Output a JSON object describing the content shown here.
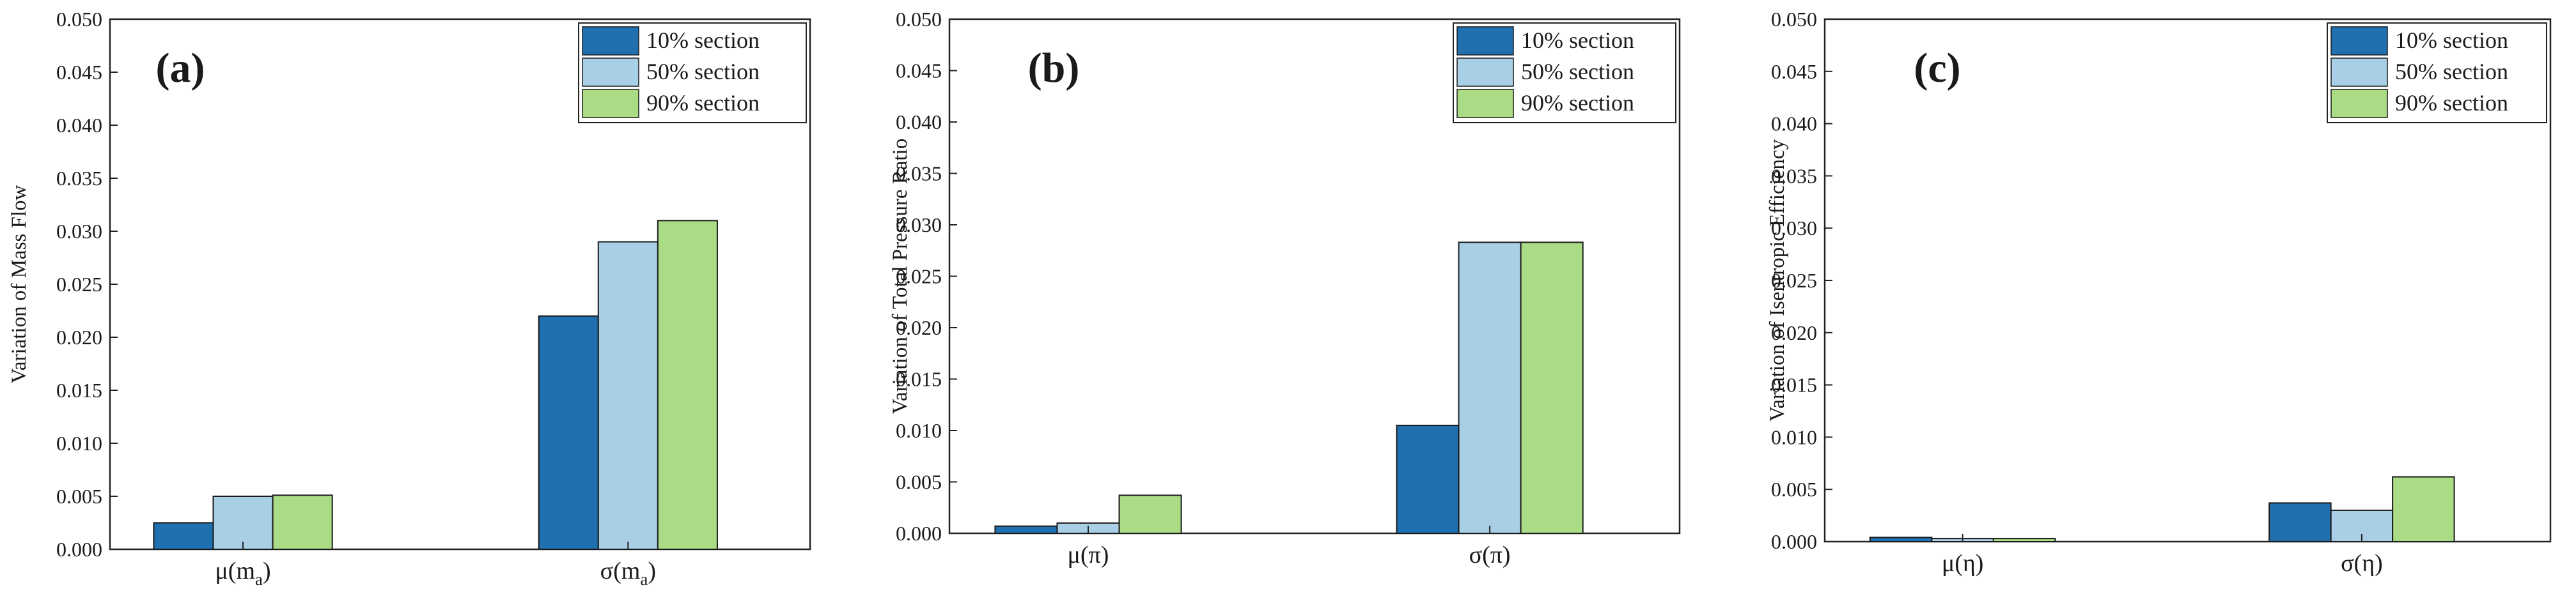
{
  "chart_data": [
    {
      "type": "bar",
      "panel": "(a)",
      "ylabel": "Variation of Mass Flow",
      "ylim": [
        0,
        0.05
      ],
      "yticks": [
        "0.000",
        "0.005",
        "0.010",
        "0.015",
        "0.020",
        "0.025",
        "0.030",
        "0.035",
        "0.040",
        "0.045",
        "0.050"
      ],
      "categories": [
        {
          "base": "μ(m",
          "sub": "a",
          "tail": ")"
        },
        {
          "base": "σ(m",
          "sub": "a",
          "tail": ")"
        }
      ],
      "series": [
        {
          "name": "10% section",
          "color": "#2070b0",
          "values": [
            0.0025,
            0.022
          ]
        },
        {
          "name": "50% section",
          "color": "#a8cfe6",
          "values": [
            0.005,
            0.029
          ]
        },
        {
          "name": "90% section",
          "color": "#aadc86",
          "values": [
            0.0051,
            0.031
          ]
        }
      ],
      "legend": "top-right",
      "grid": false
    },
    {
      "type": "bar",
      "panel": "(b)",
      "ylabel": "Variation of Total Pressure Ratio",
      "ylim": [
        0,
        0.05
      ],
      "yticks": [
        "0.000",
        "0.005",
        "0.010",
        "0.015",
        "0.020",
        "0.025",
        "0.030",
        "0.035",
        "0.040",
        "0.045",
        "0.050"
      ],
      "categories": [
        {
          "base": "μ(π)",
          "sub": "",
          "tail": ""
        },
        {
          "base": "σ(π)",
          "sub": "",
          "tail": ""
        }
      ],
      "series": [
        {
          "name": "10% section",
          "color": "#2070b0",
          "values": [
            0.0007,
            0.0105
          ]
        },
        {
          "name": "50% section",
          "color": "#a8cfe6",
          "values": [
            0.001,
            0.0283
          ]
        },
        {
          "name": "90% section",
          "color": "#aadc86",
          "values": [
            0.0037,
            0.0283
          ]
        }
      ],
      "legend": "top-right",
      "grid": false
    },
    {
      "type": "bar",
      "panel": "(c)",
      "ylabel": "Variation of Isentropic Efficiency",
      "ylim": [
        0,
        0.05
      ],
      "yticks": [
        "0.000",
        "0.005",
        "0.010",
        "0.015",
        "0.020",
        "0.025",
        "0.030",
        "0.035",
        "0.040",
        "0.045",
        "0.050"
      ],
      "categories": [
        {
          "base": "μ(η)",
          "sub": "",
          "tail": ""
        },
        {
          "base": "σ(η)",
          "sub": "",
          "tail": ""
        }
      ],
      "series": [
        {
          "name": "10% section",
          "color": "#2070b0",
          "values": [
            0.0004,
            0.0037
          ]
        },
        {
          "name": "50% section",
          "color": "#a8cfe6",
          "values": [
            0.0003,
            0.003
          ]
        },
        {
          "name": "90% section",
          "color": "#aadc86",
          "values": [
            0.0003,
            0.0062
          ]
        }
      ],
      "legend": "top-right",
      "grid": false
    }
  ]
}
